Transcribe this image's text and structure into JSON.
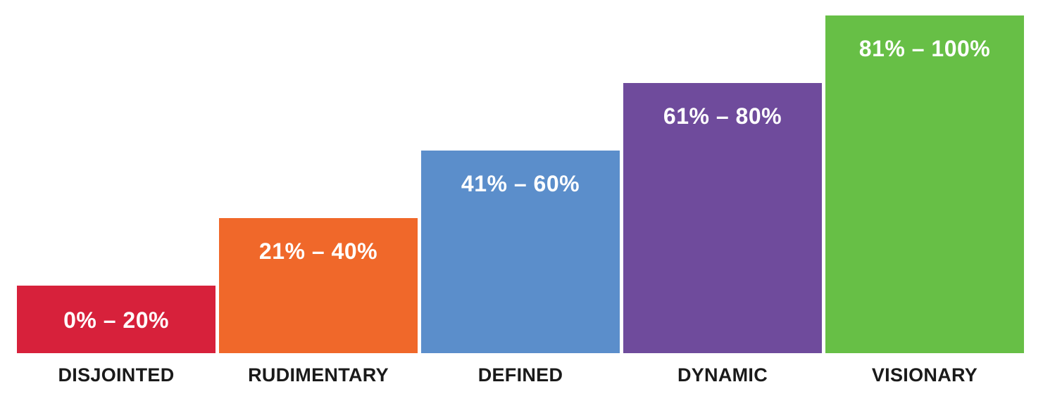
{
  "chart_data": {
    "type": "bar",
    "title": "",
    "xlabel": "",
    "ylabel": "",
    "ylim": [
      0,
      100
    ],
    "grid": false,
    "categories": [
      "DISJOINTED",
      "RUDIMENTARY",
      "DEFINED",
      "DYNAMIC",
      "VISIONARY"
    ],
    "values": [
      20,
      40,
      60,
      80,
      100
    ],
    "data_labels": [
      "0% – 20%",
      "21% – 40%",
      "41% – 60%",
      "61% – 80%",
      "81% – 100%"
    ],
    "colors": [
      "#d7213b",
      "#f0682a",
      "#5b8ecb",
      "#6f4b9c",
      "#67bf46"
    ]
  }
}
